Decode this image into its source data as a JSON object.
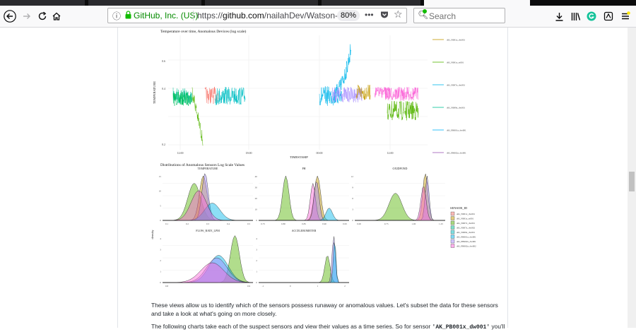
{
  "browser": {
    "identity": "GitHub, Inc. (US)",
    "url_prefix": "https://",
    "url_host": "github.com",
    "url_path": "/nailahDev/Watson-St",
    "zoom": "80%",
    "search_placeholder": "Search",
    "accent": "#0a84ff"
  },
  "figure1": {
    "title": "Temperature over time, Anomalous Devices (log scale)",
    "y_label": "TEMPERATURE",
    "x_label": "TIMESTAMP",
    "y_ticks": [
      "0.2",
      "0.4",
      "0.6"
    ],
    "x_ticks": [
      "12:00",
      "18:00",
      "00:00",
      "12:00"
    ],
    "legend": [
      "AK_N001x_dw001",
      "AK_N001x_st001",
      "AK_N007x_dw001",
      "AK_N009x_dw001",
      "AK_PB001x_dw001",
      "AK_PB002x_dw001"
    ]
  },
  "figure2": {
    "title": "Distributions of Anomalous Sensors Log Scale Values",
    "y_label": "density",
    "legend_title": "SENSOR_ID",
    "legend": [
      "AK_N001x_dw001",
      "AK_N001x_st001",
      "AK_N007x_dw001",
      "AK_N007x_dw002",
      "AK_N009x_dw001",
      "AK_PB001x_dw001",
      "AK_PB002x_dw001",
      "AK_PB002x_dw002"
    ],
    "panels": [
      {
        "title": "TEMPERATURE",
        "x_ticks": [
          "0.1",
          "0.2",
          "0.3",
          "0.4",
          "0.5"
        ],
        "y_ticks": [
          "0",
          "5",
          "10",
          "15"
        ]
      },
      {
        "title": "PH",
        "x_ticks": [
          "0.75",
          "0.80",
          "0.85",
          "0.90",
          "0.95"
        ],
        "y_ticks": [
          "0",
          "10",
          "20",
          "30",
          "40"
        ]
      },
      {
        "title": "OXIDPOND",
        "x_ticks": [
          "0.00",
          "0.75",
          "1.00",
          "1.25"
        ],
        "y_ticks": [
          "0",
          "3",
          "6",
          "9",
          "12"
        ]
      },
      {
        "title": "FLOW_RATE_LPM",
        "x_ticks": [
          "0.8",
          "0.9"
        ],
        "y_ticks": [
          "0",
          "1",
          "2",
          "3",
          "4"
        ]
      },
      {
        "title": "ACCELEROMETER",
        "x_ticks": [
          "-1",
          "0",
          "1",
          "2"
        ],
        "y_ticks": [
          "0",
          "1",
          "2",
          "3",
          "4"
        ]
      }
    ]
  },
  "body_text": {
    "paragraph1_line1": "These views allow us to identify which of the sensors possess runaway or anomalous values. Let's subset the data for these sensors",
    "paragraph1_line2": "and take a look at what's going on more closely.",
    "paragraph2_start": "The following charts take each of the suspect sensors and view their values as a time series. So for sensor ",
    "paragraph2_code": "'AK_PB001x_dw001'",
    "paragraph2_end": " you'll"
  }
}
